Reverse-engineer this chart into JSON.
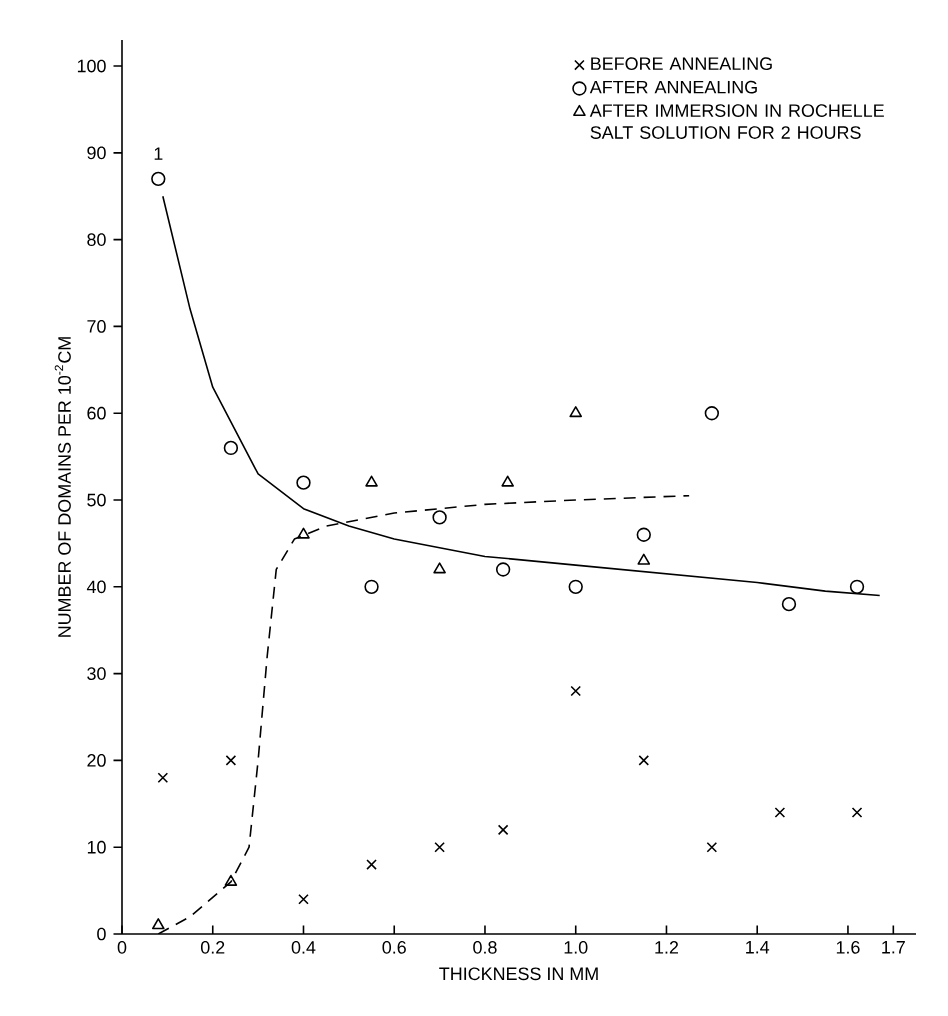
{
  "chart_data": {
    "type": "scatter",
    "xlabel": "THICKNESS IN MM",
    "ylabel": "NUMBER OF DOMAINS PER 10$^{-2}$CM",
    "xlim": [
      0,
      1.75
    ],
    "ylim": [
      0,
      103
    ],
    "xticks": [
      0,
      0.2,
      0.4,
      0.6,
      0.8,
      {
        "value": 1,
        "label": "1.0"
      },
      1.2,
      1.4,
      1.6,
      1.7
    ],
    "yticks": [
      0,
      10,
      20,
      30,
      40,
      50,
      60,
      70,
      80,
      90,
      100
    ],
    "grid": false,
    "legend": "top right",
    "annotations": [
      "1"
    ],
    "series": [
      {
        "name": "BEFORE ANNEALING",
        "color": "#000000",
        "marker": "cross",
        "x": [
          0.09,
          0.24,
          0.4,
          0.55,
          0.7,
          0.84,
          1.0,
          1.15,
          1.3,
          1.45,
          1.62
        ],
        "values": [
          18,
          20,
          4,
          8,
          10,
          12,
          28,
          20,
          10,
          14,
          14
        ]
      },
      {
        "name": "AFTER ANNEALING",
        "color": "#000000",
        "marker": "circle",
        "x": [
          0.08,
          0.24,
          0.4,
          0.55,
          0.7,
          0.84,
          1.0,
          1.15,
          1.3,
          1.47,
          1.62
        ],
        "values": [
          87,
          56,
          52,
          40,
          48,
          42,
          40,
          46,
          60,
          38,
          40
        ]
      },
      {
        "name": "AFTER IMMERSION IN ROCHELLE SALT SOLUTION FOR 2 HOURS",
        "color": "#000000",
        "marker": "triangle",
        "x": [
          0.08,
          0.24,
          0.4,
          0.55,
          0.7,
          0.85,
          1.0,
          1.15
        ],
        "values": [
          1,
          6,
          46,
          52,
          42,
          52,
          60,
          43
        ]
      },
      {
        "type": "line",
        "color": "#000000",
        "line_style": "solid",
        "marker": "none",
        "x": [
          0.09,
          0.15,
          0.2,
          0.3,
          0.4,
          0.5,
          0.6,
          0.8,
          1.0,
          1.2,
          1.4,
          1.55,
          1.67
        ],
        "values": [
          85,
          72,
          63,
          53,
          49,
          47,
          45.5,
          43.5,
          42.5,
          41.5,
          40.5,
          39.5,
          39
        ]
      },
      {
        "type": "line",
        "color": "#000000",
        "line_style": "dashed",
        "marker": "none",
        "x": [
          0.08,
          0.15,
          0.24,
          0.28,
          0.3,
          0.32,
          0.34,
          0.38,
          0.45,
          0.6,
          0.8,
          1.0,
          1.25
        ],
        "values": [
          0,
          2,
          6,
          10,
          20,
          32,
          42,
          45.5,
          47,
          48.5,
          49.5,
          50,
          50.5
        ]
      }
    ]
  }
}
